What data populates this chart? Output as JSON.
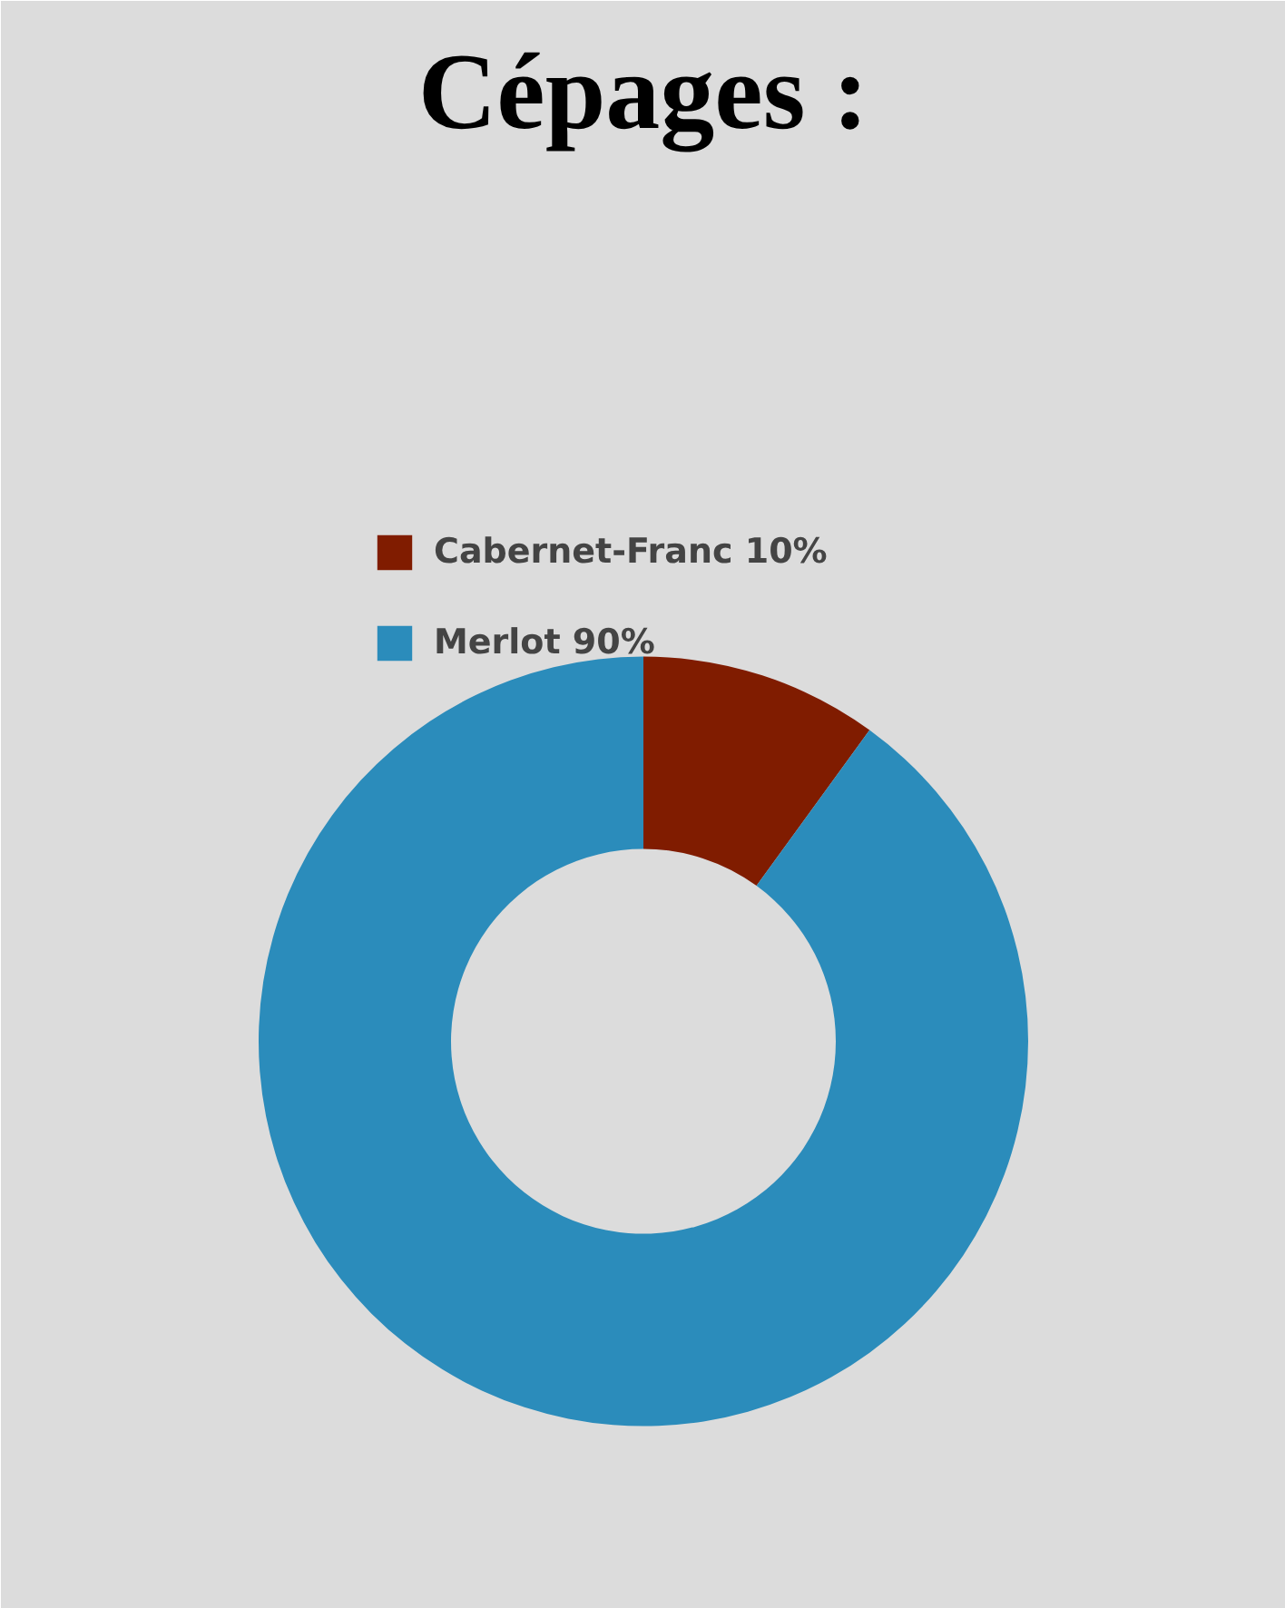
{
  "chart_data": {
    "type": "donut",
    "title": "Cépages :",
    "categories": [
      "Cabernet-Franc 10%",
      "Merlot 90%"
    ],
    "values": [
      10,
      90
    ],
    "colors": [
      "#801c00",
      "#2b8cbb"
    ],
    "legend": "top"
  }
}
